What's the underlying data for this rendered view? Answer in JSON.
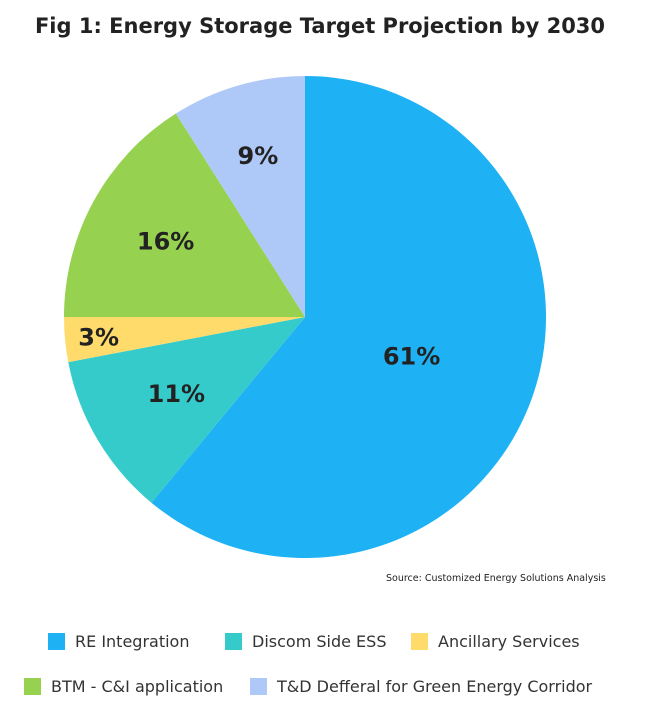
{
  "chart_data": {
    "type": "pie",
    "title": "Fig 1: Energy Storage Target Projection by 2030",
    "source": "Source: Customized Energy Solutions Analysis",
    "legend_position": "bottom",
    "slices": [
      {
        "name": "RE Integration",
        "value": 61,
        "label": "61%",
        "color": "#1eb2f5"
      },
      {
        "name": "Discom Side ESS",
        "value": 11,
        "label": "11%",
        "color": "#36cbcb"
      },
      {
        "name": "Ancillary Services",
        "value": 3,
        "label": "3%",
        "color": "#fedb6b"
      },
      {
        "name": "BTM - C&I application",
        "value": 16,
        "label": "16%",
        "color": "#96d150"
      },
      {
        "name": "T&D Defferal for Green Energy Corridor",
        "value": 9,
        "label": "9%",
        "color": "#aec9f7"
      }
    ]
  }
}
